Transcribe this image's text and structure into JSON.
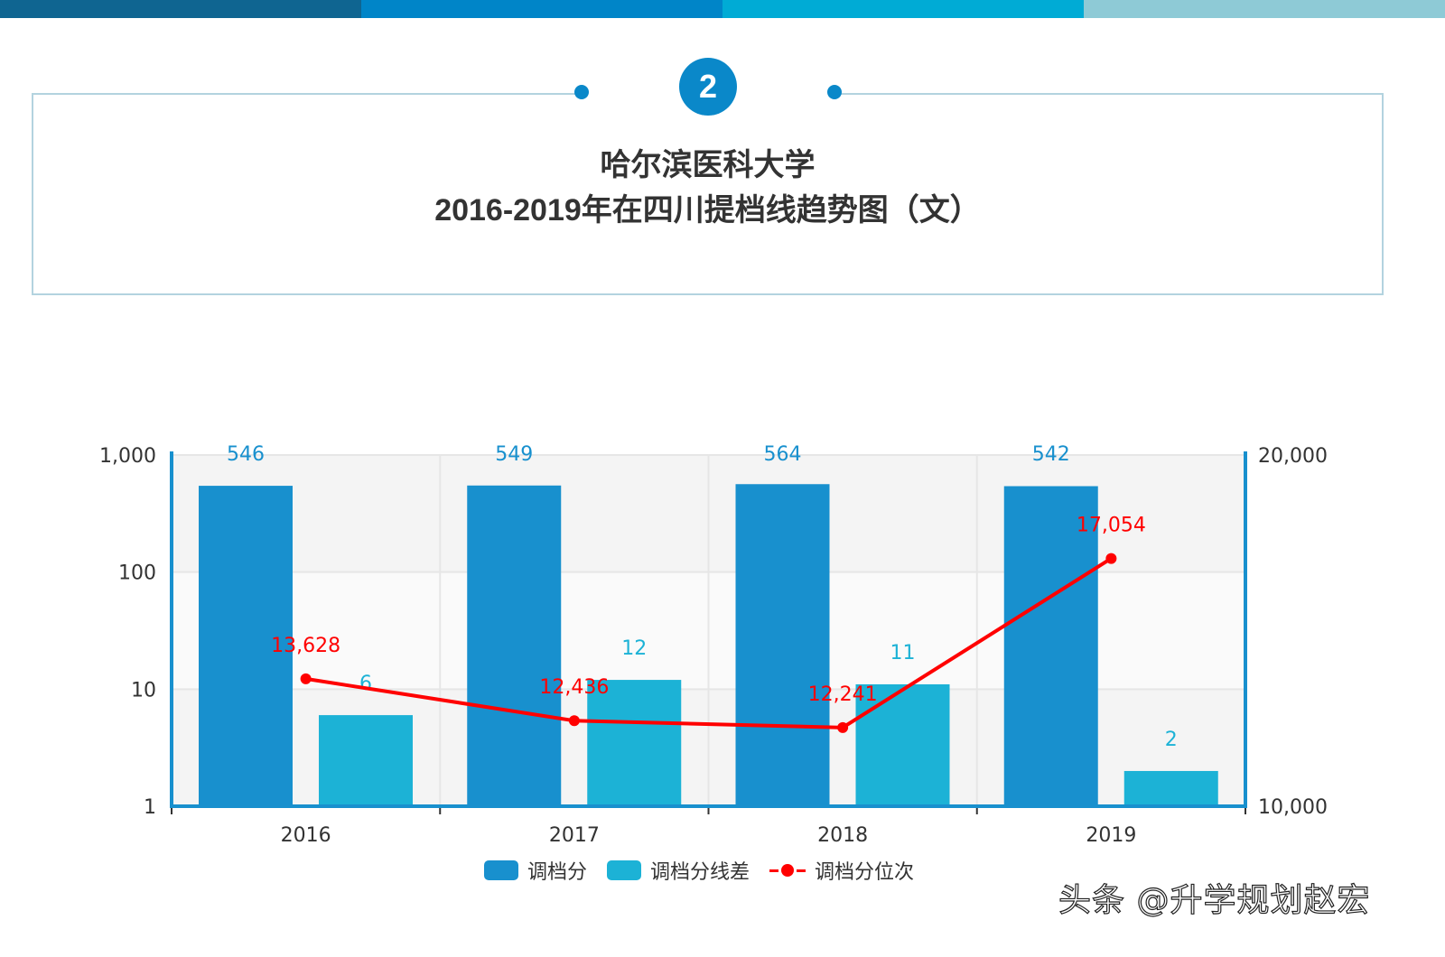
{
  "header": {
    "stripe_colors": [
      "#0f6591",
      "#0085c8",
      "#00abd5",
      "#8ecad6"
    ],
    "badge_number": "2",
    "title_line1": "哈尔滨医科大学",
    "title_line2": "2016-2019年在四川提档线趋势图（文）"
  },
  "legend": {
    "items": [
      {
        "label": "调档分",
        "color": "#1890ce"
      },
      {
        "label": "调档分线差",
        "color": "#1cb2d6"
      },
      {
        "label": "调档分位次",
        "color": "#ff0000"
      }
    ]
  },
  "watermark": "头条 @升学规划赵宏",
  "chart_data": {
    "type": "bar",
    "title": "哈尔滨医科大学 2016-2019年在四川提档线趋势图（文）",
    "categories": [
      "2016",
      "2017",
      "2018",
      "2019"
    ],
    "series": [
      {
        "name": "调档分",
        "type": "bar",
        "axis": "left",
        "color": "#1890ce",
        "values": [
          546,
          549,
          564,
          542
        ]
      },
      {
        "name": "调档分线差",
        "type": "bar",
        "axis": "left",
        "color": "#1cb2d6",
        "values": [
          6,
          12,
          11,
          2
        ]
      },
      {
        "name": "调档分位次",
        "type": "line",
        "axis": "right",
        "color": "#ff0000",
        "values": [
          13628,
          12436,
          12241,
          17054
        ]
      }
    ],
    "labels": {
      "bar1": [
        "546",
        "549",
        "564",
        "542"
      ],
      "bar2": [
        "6",
        "12",
        "11",
        "2"
      ],
      "line": [
        "13,628",
        "12,436",
        "12,241",
        "17,054"
      ]
    },
    "y_left": {
      "scale": "log",
      "range": [
        1,
        1000
      ],
      "ticks": [
        "1",
        "10",
        "100",
        "1,000"
      ]
    },
    "y_right": {
      "scale": "linear",
      "range": [
        10000,
        20000
      ],
      "ticks": [
        "10,000",
        "20,000"
      ]
    },
    "xlabel": "",
    "ylabel": "",
    "grid": true,
    "legend_position": "bottom"
  }
}
